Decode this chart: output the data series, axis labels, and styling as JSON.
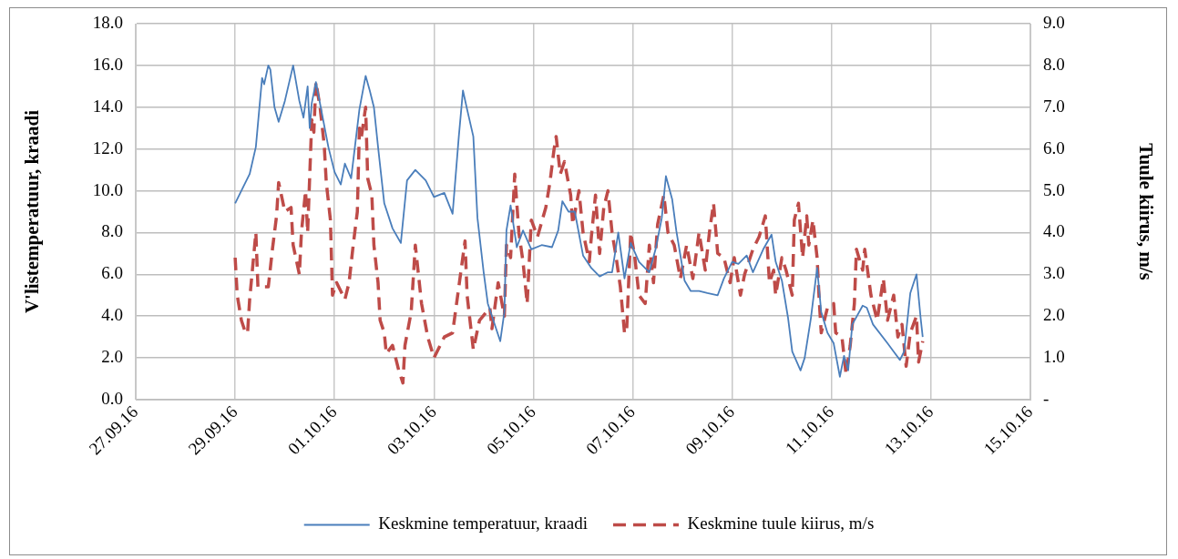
{
  "chart_data": {
    "type": "line",
    "ylabel": "V'listemperatuur, kraadi",
    "y2label": "Tuule kiirus, m/s",
    "xlim": [
      "--09-27",
      "--10-15"
    ],
    "xticks": [
      {
        "value": "--09-27",
        "label": "27.09.16"
      },
      {
        "value": "--09-29",
        "label": "29.09.16"
      },
      {
        "value": "--10-01",
        "label": "01.10.16"
      },
      {
        "value": "--10-03",
        "label": "03.10.16"
      },
      {
        "value": "--10-05",
        "label": "05.10.16"
      },
      {
        "value": "--10-07",
        "label": "07.10.16"
      },
      {
        "value": "--10-09",
        "label": "09.10.16"
      },
      {
        "value": "--10-11",
        "label": "11.10.16"
      },
      {
        "value": "--10-13",
        "label": "13.10.16"
      },
      {
        "value": "--10-15",
        "label": "15.10.16"
      }
    ],
    "ylim": [
      0,
      18
    ],
    "yticks": [
      {
        "value": 0,
        "label": "0.0"
      },
      {
        "value": 2,
        "label": "2.0"
      },
      {
        "value": 4,
        "label": "4.0"
      },
      {
        "value": 6,
        "label": "6.0"
      },
      {
        "value": 8,
        "label": "8.0"
      },
      {
        "value": 10,
        "label": "10.0"
      },
      {
        "value": 12,
        "label": "12.0"
      },
      {
        "value": 14,
        "label": "14.0"
      },
      {
        "value": 16,
        "label": "16.0"
      },
      {
        "value": 18,
        "label": "18.0"
      }
    ],
    "y2lim": [
      0,
      9
    ],
    "y2ticks": [
      {
        "value": 0,
        "label": "-"
      },
      {
        "value": 1,
        "label": "1.0"
      },
      {
        "value": 2,
        "label": "2.0"
      },
      {
        "value": 3,
        "label": "3.0"
      },
      {
        "value": 4,
        "label": "4.0"
      },
      {
        "value": 5,
        "label": "5.0"
      },
      {
        "value": 6,
        "label": "6.0"
      },
      {
        "value": 7,
        "label": "7.0"
      },
      {
        "value": 8,
        "label": "8.0"
      },
      {
        "value": 9,
        "label": "9.0"
      }
    ],
    "grid": true,
    "legend": "bottom",
    "marker": "none",
    "series": [
      {
        "name": "Keskmine temperatuur, kraadi",
        "color": "#4a7ebb",
        "line_style": "solid",
        "x": [
          "--09-29T00:00",
          "--09-29T04:00",
          "--09-29T07:00",
          "--09-29T10:00",
          "--09-29T13:00",
          "--09-29T14:00",
          "--09-29T16:00",
          "--09-29T17:00",
          "--09-29T19:00",
          "--09-29T21:00",
          "--09-30T00:00",
          "--09-30T04:00",
          "--09-30T07:00",
          "--09-30T09:00",
          "--09-30T11:00",
          "--09-30T12:00",
          "--09-30T13:00",
          "--09-30T15:00",
          "--09-30T21:00",
          "--10-01T00:00",
          "--10-01T03:00",
          "--10-01T05:00",
          "--10-01T08:00",
          "--10-01T12:00",
          "--10-01T15:00",
          "--10-01T17:00",
          "--10-01T19:00",
          "--10-01T21:00",
          "--10-02T00:00",
          "--10-02T04:00",
          "--10-02T08:00",
          "--10-02T11:00",
          "--10-02T15:00",
          "--10-02T20:00",
          "--10-03T00:00",
          "--10-03T05:00",
          "--10-03T09:00",
          "--10-03T12:00",
          "--10-03T14:00",
          "--10-03T16:00",
          "--10-03T19:00",
          "--10-03T21:00",
          "--10-04T00:00",
          "--10-04T02:00",
          "--10-04T06:00",
          "--10-04T08:00",
          "--10-04T10:00",
          "--10-04T11:00",
          "--10-04T13:00",
          "--10-04T16:00",
          "--10-04T19:00",
          "--10-04T23:00",
          "--10-05T04:00",
          "--10-05T09:00",
          "--10-05T12:00",
          "--10-05T14:00",
          "--10-05T17:00",
          "--10-05T20:00",
          "--10-06T00:00",
          "--10-06T04:00",
          "--10-06T08:00",
          "--10-06T12:00",
          "--10-06T14:00",
          "--10-06T17:00",
          "--10-06T20:00",
          "--10-06T23:00",
          "--10-07T03:00",
          "--10-07T08:00",
          "--10-07T11:00",
          "--10-07T14:00",
          "--10-07T16:00",
          "--10-07T19:00",
          "--10-07T21:00",
          "--10-08T01:00",
          "--10-08T04:00",
          "--10-08T08:00",
          "--10-08T12:00",
          "--10-08T17:00",
          "--10-08T20:00",
          "--10-09T00:00",
          "--10-09T03:00",
          "--10-09T07:00",
          "--10-09T10:00",
          "--10-09T15:00",
          "--10-09T19:00",
          "--10-09T21:00",
          "--10-10T00:00",
          "--10-10T03:00",
          "--10-10T05:00",
          "--10-10T09:00",
          "--10-10T11:00",
          "--10-10T14:00",
          "--10-10T17:00",
          "--10-10T19:00",
          "--10-10T22:00",
          "--10-11T01:00",
          "--10-11T04:00",
          "--10-11T06:00",
          "--10-11T08:00",
          "--10-11T10:00",
          "--10-11T15:00",
          "--10-11T17:00",
          "--10-11T20:00",
          "--10-12T03:00",
          "--10-12T06:00",
          "--10-12T09:00",
          "--10-12T11:00",
          "--10-12T14:00",
          "--10-12T17:00",
          "--10-12T19:00",
          "--10-12T20:00"
        ],
        "values": [
          9.4,
          10.2,
          10.8,
          12.1,
          15.4,
          15.1,
          16.0,
          15.8,
          14.0,
          13.3,
          14.3,
          16.0,
          14.3,
          13.5,
          15.0,
          13.0,
          14.2,
          15.2,
          12.1,
          10.9,
          10.3,
          11.3,
          10.6,
          13.9,
          15.5,
          14.8,
          14.0,
          12.1,
          9.4,
          8.2,
          7.5,
          10.5,
          11.0,
          10.5,
          9.7,
          9.9,
          8.9,
          12.6,
          14.8,
          13.9,
          12.6,
          8.7,
          6.1,
          4.6,
          3.4,
          2.8,
          4.2,
          8.1,
          9.3,
          7.3,
          8.1,
          7.2,
          7.4,
          7.3,
          8.1,
          9.5,
          9.0,
          9.0,
          6.9,
          6.3,
          5.9,
          6.1,
          6.1,
          8.0,
          5.8,
          7.5,
          6.6,
          6.1,
          7.2,
          8.7,
          10.7,
          9.6,
          8.1,
          5.7,
          5.2,
          5.2,
          5.1,
          5.0,
          5.8,
          6.6,
          6.5,
          6.9,
          6.1,
          7.2,
          7.9,
          6.6,
          5.7,
          3.9,
          2.3,
          1.4,
          2.0,
          3.9,
          6.3,
          4.2,
          3.2,
          2.7,
          1.1,
          2.1,
          1.4,
          3.6,
          4.5,
          4.4,
          3.6,
          2.7,
          2.3,
          1.9,
          2.3,
          5.1,
          6.0,
          3.9,
          3.0
        ]
      },
      {
        "name": "Keskmine tuule kiirus, m/s",
        "color": "#be4b48",
        "line_style": "dashed",
        "axis": "y2",
        "x": [
          "--09-29T00:00",
          "--09-29T01:00",
          "--09-29T03:00",
          "--09-29T05:00",
          "--09-29T06:00",
          "--09-29T07:00",
          "--09-29T10:00",
          "--09-29T11:00",
          "--09-29T16:00",
          "--09-29T18:00",
          "--09-29T20:00",
          "--09-29T21:00",
          "--09-30T00:00",
          "--09-30T03:00",
          "--09-30T04:00",
          "--09-30T07:00",
          "--09-30T08:00",
          "--09-30T10:00",
          "--09-30T11:00",
          "--09-30T13:00",
          "--09-30T14:00",
          "--09-30T15:00",
          "--09-30T17:00",
          "--09-30T19:00",
          "--09-30T20:00",
          "--09-30T22:00",
          "--09-30T23:00",
          "--10-01T01:00",
          "--10-01T03:00",
          "--10-01T05:00",
          "--10-01T07:00",
          "--10-01T09:00",
          "--10-01T11:00",
          "--10-01T12:00",
          "--10-01T13:00",
          "--10-01T15:00",
          "--10-01T16:00",
          "--10-01T18:00",
          "--10-01T19:00",
          "--10-01T21:00",
          "--10-01T22:00",
          "--10-02T00:00",
          "--10-02T01:00",
          "--10-02T04:00",
          "--10-02T07:00",
          "--10-02T09:00",
          "--10-02T10:00",
          "--10-02T13:00",
          "--10-02T15:00",
          "--10-02T18:00",
          "--10-02T21:00",
          "--10-03T00:00",
          "--10-03T05:00",
          "--10-03T09:00",
          "--10-03T12:00",
          "--10-03T15:00",
          "--10-03T16:00",
          "--10-03T19:00",
          "--10-03T22:00",
          "--10-04T03:00",
          "--10-04T04:00",
          "--10-04T07:00",
          "--10-04T10:00",
          "--10-04T11:00",
          "--10-04T13:00",
          "--10-04T15:00",
          "--10-04T17:00",
          "--10-04T19:00",
          "--10-04T21:00",
          "--10-04T23:00",
          "--10-05T02:00",
          "--10-05T06:00",
          "--10-05T08:00",
          "--10-05T10:00",
          "--10-05T11:00",
          "--10-05T13:00",
          "--10-05T15:00",
          "--10-05T18:00",
          "--10-05T19:00",
          "--10-05T22:00",
          "--10-06T00:00",
          "--10-06T03:00",
          "--10-06T04:00",
          "--10-06T06:00",
          "--10-06T08:00",
          "--10-06T10:00",
          "--10-06T12:00",
          "--10-06T14:00",
          "--10-06T16:00",
          "--10-06T18:00",
          "--10-06T20:00",
          "--10-06T21:00",
          "--10-06T23:00",
          "--10-07T01:00",
          "--10-07T03:00",
          "--10-07T06:00",
          "--10-07T08:00",
          "--10-07T10:00",
          "--10-07T12:00",
          "--10-07T15:00",
          "--10-07T17:00",
          "--10-07T20:00",
          "--10-07T23:00",
          "--10-08T02:00",
          "--10-08T05:00",
          "--10-08T08:00",
          "--10-08T11:00",
          "--10-08T13:00",
          "--10-08T15:00",
          "--10-08T17:00",
          "--10-08T20:00",
          "--10-08T23:00",
          "--10-09T01:00",
          "--10-09T04:00",
          "--10-09T06:00",
          "--10-09T10:00",
          "--10-09T13:00",
          "--10-09T16:00",
          "--10-09T18:00",
          "--10-09T20:00",
          "--10-09T21:00",
          "--10-10T00:00",
          "--10-10T02:00",
          "--10-10T05:00",
          "--10-10T06:00",
          "--10-10T08:00",
          "--10-10T10:00",
          "--10-10T12:00",
          "--10-10T13:00",
          "--10-10T15:00",
          "--10-10T17:00",
          "--10-10T18:00",
          "--10-10T19:00",
          "--10-10T22:00",
          "--10-11T01:00",
          "--10-11T02:00",
          "--10-11T05:00",
          "--10-11T07:00",
          "--10-11T09:00",
          "--10-11T11:00",
          "--10-11T12:00",
          "--10-11T15:00",
          "--10-11T16:00",
          "--10-11T19:00",
          "--10-11T22:00",
          "--10-12T01:00",
          "--10-12T03:00",
          "--10-12T06:00",
          "--10-12T08:00",
          "--10-12T10:00",
          "--10-12T12:00",
          "--10-12T14:00",
          "--10-12T17:00",
          "--10-12T18:00",
          "--10-12T20:00"
        ],
        "values": [
          3.4,
          2.5,
          1.9,
          1.6,
          1.6,
          2.4,
          4.0,
          2.7,
          2.7,
          3.6,
          4.4,
          5.2,
          4.5,
          4.6,
          3.7,
          3.0,
          4.0,
          5.0,
          4.0,
          6.7,
          6.4,
          7.6,
          7.0,
          6.1,
          5.2,
          4.3,
          2.5,
          2.8,
          2.6,
          2.4,
          2.8,
          3.7,
          4.5,
          6.5,
          6.3,
          7.0,
          5.3,
          4.9,
          3.7,
          2.8,
          1.9,
          1.6,
          1.1,
          1.3,
          0.7,
          0.4,
          1.3,
          2.1,
          3.7,
          2.3,
          1.5,
          1.0,
          1.5,
          1.6,
          2.7,
          3.8,
          2.5,
          1.2,
          1.9,
          2.2,
          1.7,
          2.8,
          2.0,
          3.7,
          3.4,
          5.4,
          4.0,
          3.3,
          2.3,
          4.3,
          3.9,
          4.6,
          5.2,
          6.0,
          6.3,
          5.4,
          5.7,
          4.9,
          4.2,
          5.0,
          4.0,
          3.3,
          3.9,
          4.9,
          3.5,
          4.6,
          5.0,
          4.0,
          3.4,
          2.7,
          1.6,
          1.6,
          4.0,
          3.4,
          2.5,
          2.3,
          3.7,
          2.8,
          4.2,
          4.9,
          4.0,
          3.7,
          2.9,
          3.7,
          2.9,
          4.0,
          3.1,
          4.0,
          4.7,
          3.5,
          3.4,
          2.8,
          3.4,
          2.5,
          3.0,
          3.6,
          3.9,
          4.4,
          2.8,
          3.1,
          2.5,
          3.4,
          3.1,
          2.5,
          4.3,
          4.7,
          3.4,
          4.4,
          3.7,
          4.3,
          3.4,
          2.4,
          1.6,
          2.2,
          2.3,
          1.6,
          1.5,
          0.6,
          1.3,
          2.3,
          3.6,
          3.1,
          3.6,
          2.5,
          1.9,
          2.9,
          1.9,
          2.5,
          1.5,
          1.8,
          0.8,
          1.6,
          2.0,
          0.9,
          1.4
        ]
      }
    ]
  }
}
